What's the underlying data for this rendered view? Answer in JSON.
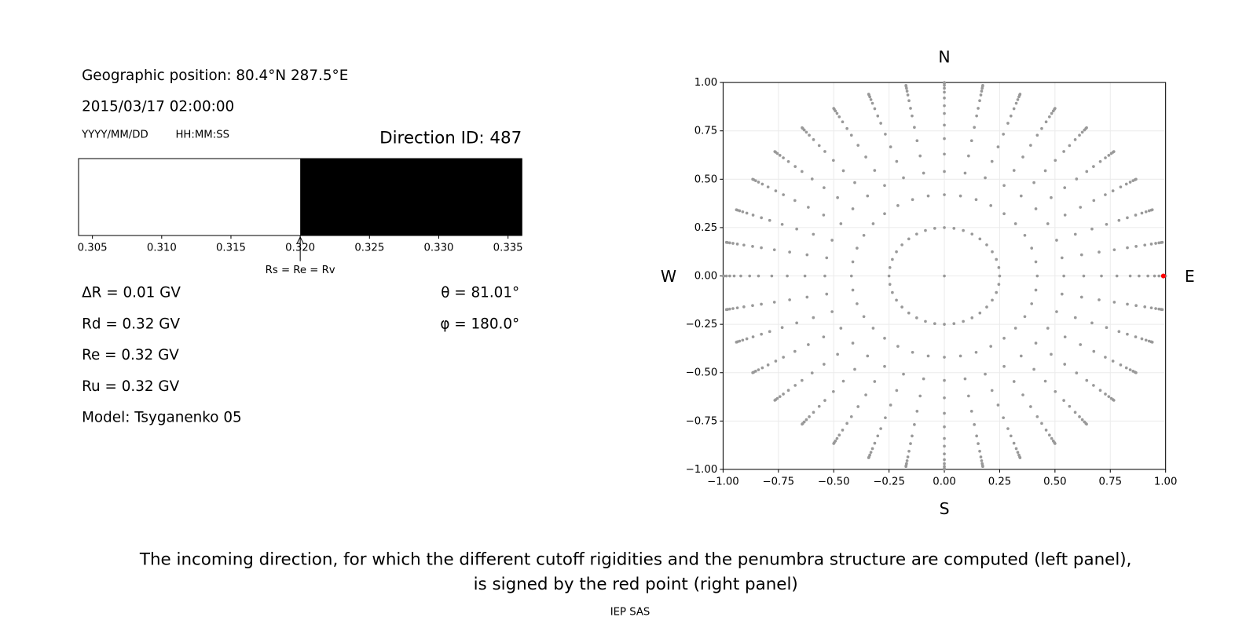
{
  "info": {
    "position": "Geographic position: 80.4°N 287.5°E",
    "datetime": "2015/03/17 02:00:00",
    "date_format": "YYYY/MM/DD",
    "time_format": "HH:MM:SS",
    "direction": "Direction ID: 487",
    "left_lines": [
      "ΔR = 0.01 GV",
      "Rd = 0.32 GV",
      "Re = 0.32 GV",
      "Ru = 0.32 GV",
      "Model: Tsyganenko 05"
    ],
    "right_lines": [
      "θ = 81.01°",
      "φ = 180.0°"
    ]
  },
  "chart_data": [
    {
      "type": "penumbra",
      "xlim": [
        0.304,
        0.336
      ],
      "xticks": [
        0.305,
        {
          "value": 0.31,
          "label": "0.310"
        },
        0.315,
        {
          "value": 0.32,
          "label": "0.320"
        },
        0.325,
        {
          "value": 0.33,
          "label": "0.330"
        },
        0.335
      ],
      "bands": [
        {
          "start": 0.304,
          "end": 0.32,
          "color": "#ffffff"
        },
        {
          "start": 0.32,
          "end": 0.336,
          "color": "#000000"
        }
      ],
      "annotation": {
        "text": "Rs = Re = Rv",
        "value": 0.32
      }
    },
    {
      "type": "polar-scatter",
      "xlim": [
        -1,
        1
      ],
      "ylim": [
        -1,
        1
      ],
      "xticks": [
        {
          "value": -1,
          "label": "−1.00"
        },
        {
          "value": -0.75,
          "label": "−0.75"
        },
        {
          "value": -0.5,
          "label": "−0.50"
        },
        {
          "value": -0.25,
          "label": "−0.25"
        },
        {
          "value": 0,
          "label": "0.00"
        },
        {
          "value": 0.25,
          "label": "0.25"
        },
        {
          "value": 0.5,
          "label": "0.50"
        },
        {
          "value": 0.75,
          "label": "0.75"
        },
        {
          "value": 1,
          "label": "1.00"
        }
      ],
      "yticks": [
        {
          "value": -1,
          "label": "−1.00"
        },
        {
          "value": -0.75,
          "label": "−0.75"
        },
        {
          "value": -0.5,
          "label": "−0.50"
        },
        {
          "value": -0.25,
          "label": "−0.25"
        },
        {
          "value": 0,
          "label": "0.00"
        },
        {
          "value": 0.25,
          "label": "0.25"
        },
        {
          "value": 0.5,
          "label": "0.50"
        },
        {
          "value": 0.75,
          "label": "0.75"
        },
        {
          "value": 1,
          "label": "1.00"
        }
      ],
      "grid": true,
      "color": "#999999",
      "azimuths": [
        0,
        10,
        20,
        30,
        40,
        50,
        60,
        70,
        80,
        90,
        100,
        110,
        120,
        130,
        140,
        150,
        160,
        170,
        180,
        190,
        200,
        210,
        220,
        230,
        240,
        250,
        260,
        270,
        280,
        290,
        300,
        310,
        320,
        330,
        340,
        350
      ],
      "radii": [
        0.25,
        0.42,
        0.54,
        0.63,
        0.71,
        0.78,
        0.84,
        0.88,
        0.92,
        0.95,
        0.97,
        0.985,
        0.995,
        1.0
      ],
      "center": {
        "x": 0,
        "y": 0
      },
      "highlight": {
        "x": 0.99,
        "y": 0,
        "color": "#ff0000"
      },
      "compass": {
        "north": "N",
        "south": "S",
        "west": "W",
        "east": "E"
      }
    }
  ],
  "caption": [
    "The incoming direction, for which the different cutoff rigidities and the penumbra structure are computed (left panel),",
    "is signed by the red point (right panel)"
  ],
  "credit": "IEP SAS"
}
